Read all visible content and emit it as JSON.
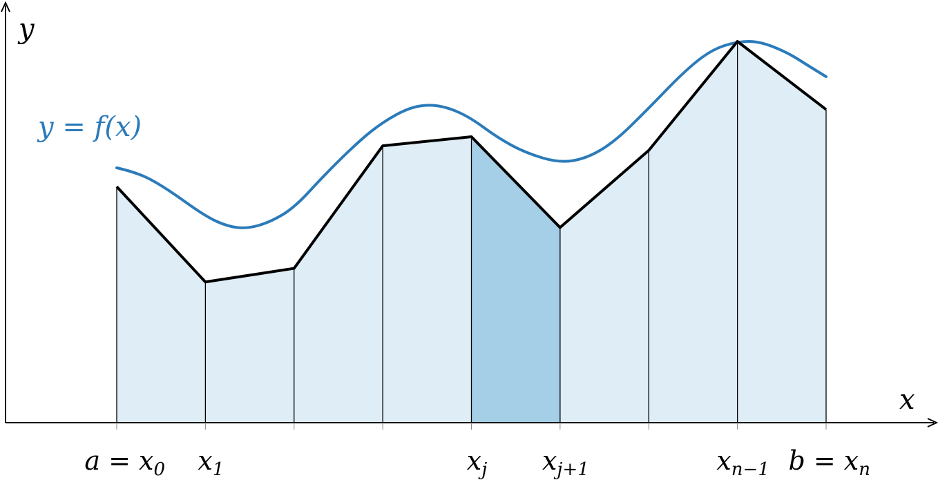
{
  "colors": {
    "curve": "#2b7bba",
    "trapezoid_fill": "#dfedf6",
    "highlight_fill": "#a4cfe6",
    "chord": "#000000",
    "axis": "#000000"
  },
  "labels": {
    "x_axis": "x",
    "y_axis": "y",
    "function": "y = f(x)"
  },
  "ticks": [
    {
      "main": "a = x",
      "sub": "0"
    },
    {
      "main": "x",
      "sub": "1"
    },
    {
      "main": "",
      "sub": ""
    },
    {
      "main": "",
      "sub": ""
    },
    {
      "main": "x",
      "sub": "j"
    },
    {
      "main": "x",
      "sub": "j+1"
    },
    {
      "main": "",
      "sub": ""
    },
    {
      "main": "x",
      "sub": "n−1"
    },
    {
      "main": "b = x",
      "sub": "n"
    }
  ],
  "node_values": [
    0.52,
    0.31,
    0.34,
    0.61,
    0.63,
    0.43,
    0.6,
    0.84,
    0.69
  ],
  "highlighted_interval": 4
}
